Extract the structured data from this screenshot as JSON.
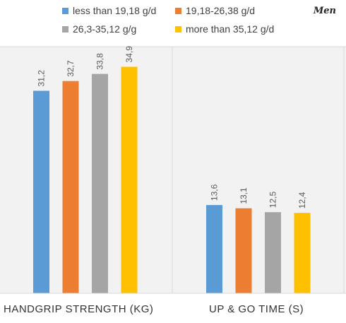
{
  "corner_label": "Men",
  "chart_data": {
    "type": "bar",
    "categories": [
      "HANDGRIP STRENGTH (KG)",
      "UP & GO TIME (S)"
    ],
    "series": [
      {
        "name": "less than 19,18 g/d",
        "color": "#5b9bd5",
        "values": [
          31.2,
          13.6
        ],
        "labels": [
          "31,2",
          "13,6"
        ]
      },
      {
        "name": "19,18-26,38 g/d",
        "color": "#ed7d31",
        "values": [
          32.7,
          13.1
        ],
        "labels": [
          "32,7",
          "13,1"
        ]
      },
      {
        "name": "26,3-35,12 g/g",
        "color": "#a5a5a5",
        "values": [
          33.8,
          12.5
        ],
        "labels": [
          "33,8",
          "12,5"
        ]
      },
      {
        "name": "more than 35,12 g/d",
        "color": "#ffc000",
        "values": [
          34.9,
          12.4
        ],
        "labels": [
          "34,9",
          "12,4"
        ]
      }
    ],
    "ylim": [
      0,
      38
    ],
    "grid": false,
    "legend": "top"
  }
}
